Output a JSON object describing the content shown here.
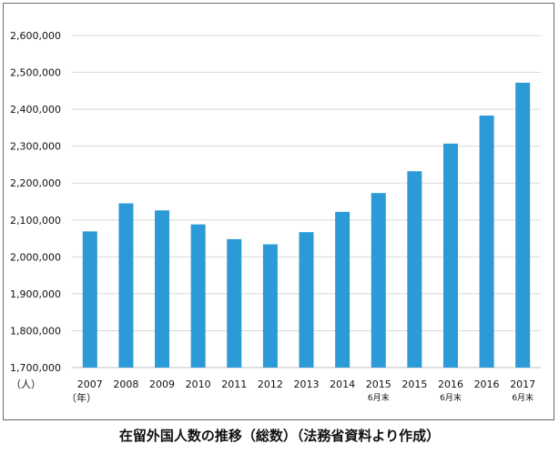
{
  "chart_data": {
    "type": "bar",
    "title": "在留外国人数の推移（総数）（法務省資料より作成）",
    "ylabel": "（人）",
    "xlabel": "（年）",
    "ylim": [
      1700000,
      2600000
    ],
    "yticks": [
      1700000,
      1800000,
      1900000,
      2000000,
      2100000,
      2200000,
      2300000,
      2400000,
      2500000,
      2600000
    ],
    "ytick_labels": [
      "1,700,000",
      "1,800,000",
      "1,900,000",
      "2,000,000",
      "2,100,000",
      "2,200,000",
      "2,300,000",
      "2,400,000",
      "2,500,000",
      "2,600,000"
    ],
    "categories": [
      "2007",
      "2008",
      "2009",
      "2010",
      "2011",
      "2012",
      "2013",
      "2014",
      "2015",
      "2015",
      "2016",
      "2016",
      "2017"
    ],
    "category_sublabels": [
      "",
      "",
      "",
      "",
      "",
      "",
      "",
      "",
      "6月末",
      "",
      "6月末",
      "",
      "6月末"
    ],
    "values": [
      2069000,
      2145000,
      2126000,
      2088000,
      2048000,
      2034000,
      2067000,
      2122000,
      2173000,
      2232000,
      2307000,
      2383000,
      2472000
    ],
    "bar_color": "#2b9ad6",
    "grid": true,
    "grid_color": "#d9d9d9"
  }
}
